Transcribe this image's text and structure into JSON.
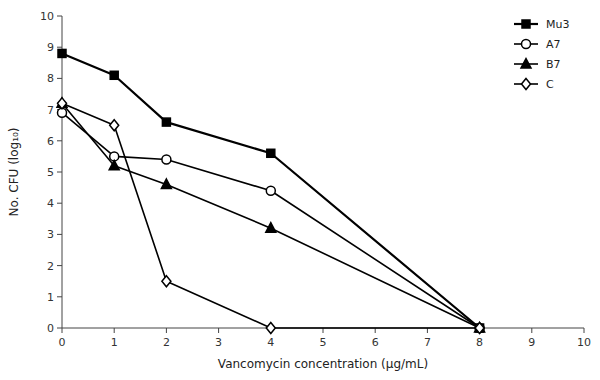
{
  "chart_data": {
    "type": "line",
    "xlabel": "Vancomycin concentration (μg/mL)",
    "ylabel": "No. CFU (log₁₀)",
    "x": [
      0,
      1,
      2,
      4,
      8
    ],
    "series": [
      {
        "name": "Mu3",
        "color": "#000000",
        "marker": "square",
        "values": [
          8.8,
          8.1,
          6.6,
          5.6,
          0.0
        ]
      },
      {
        "name": "A7",
        "color": "#000000",
        "marker": "circle-open",
        "values": [
          6.9,
          5.5,
          5.4,
          4.4,
          0.0
        ]
      },
      {
        "name": "B7",
        "color": "#000000",
        "marker": "triangle",
        "values": [
          7.2,
          5.2,
          4.6,
          3.2,
          0.0
        ]
      },
      {
        "name": "C",
        "color": "#000000",
        "marker": "diamond-open",
        "values": [
          7.2,
          6.5,
          1.5,
          0.0,
          0.0
        ]
      }
    ],
    "xlim": [
      0,
      10
    ],
    "ylim": [
      0,
      10
    ],
    "xticks": [
      0,
      1,
      2,
      3,
      4,
      5,
      6,
      7,
      8,
      9,
      10
    ],
    "yticks": [
      0,
      1,
      2,
      3,
      4,
      5,
      6,
      7,
      8,
      9,
      10
    ],
    "grid": false,
    "legend": "upper-right"
  }
}
